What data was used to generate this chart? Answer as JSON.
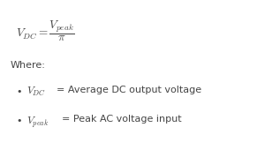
{
  "bg_color": "#ffffff",
  "text_color": "#444444",
  "main_formula": "$V_{DC} = \\dfrac{V_{peak}}{\\pi}$",
  "where_label": "Where:",
  "bullet1_math": "$V_{DC}$",
  "bullet1_text": "= Average DC output voltage",
  "bullet2_math": "$V_{peak}$",
  "bullet2_text": "= Peak AC voltage input",
  "formula_fontsize": 9.5,
  "where_fontsize": 8,
  "bullet_math_fontsize": 8.5,
  "bullet_text_fontsize": 8
}
